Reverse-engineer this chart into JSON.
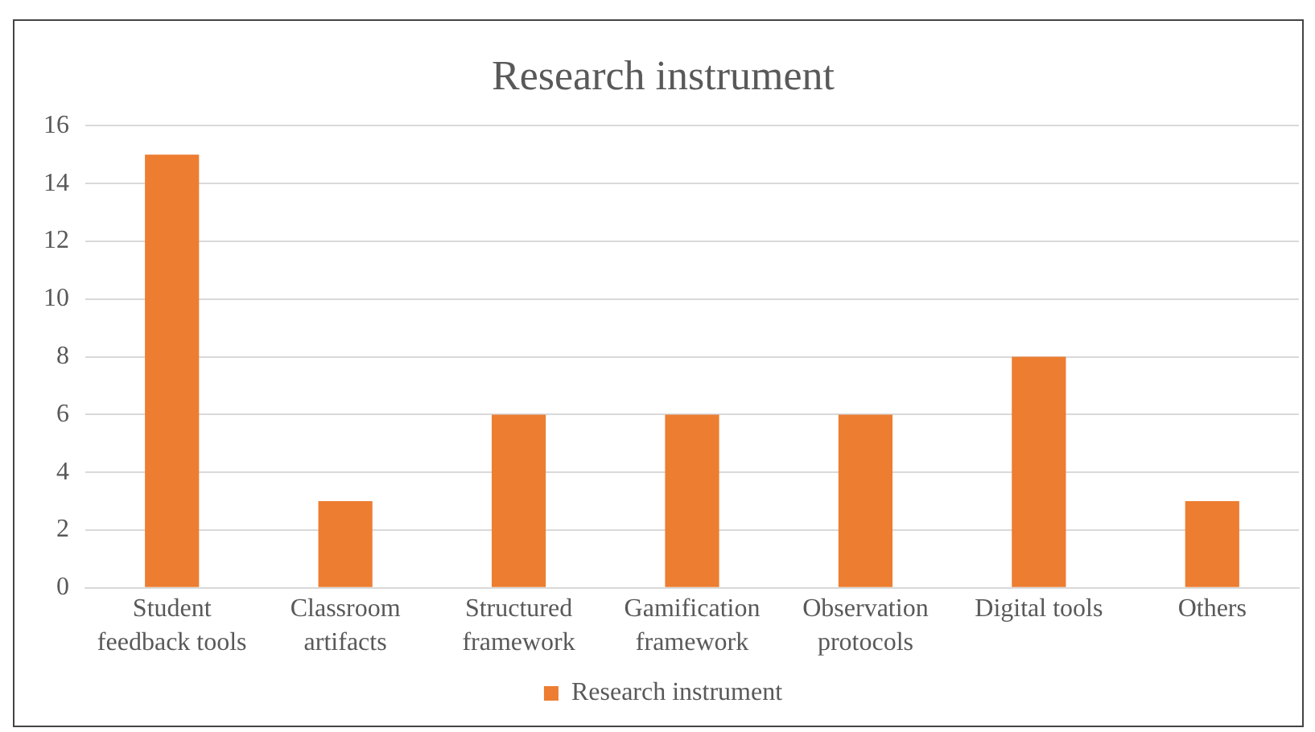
{
  "chart_data": {
    "type": "bar",
    "title": "Research instrument",
    "categories": [
      "Student feedback tools",
      "Classroom artifacts",
      "Structured framework",
      "Gamification framework",
      "Observation protocols",
      "Digital tools",
      "Others"
    ],
    "series": [
      {
        "name": "Research instrument",
        "color": "#ed7d31",
        "values": [
          15,
          3,
          6,
          6,
          6,
          8,
          3
        ]
      }
    ],
    "ylim": [
      0,
      16
    ],
    "yticks": [
      0,
      2,
      4,
      6,
      8,
      10,
      12,
      14,
      16
    ],
    "grid": "y",
    "legend": "bottom"
  }
}
